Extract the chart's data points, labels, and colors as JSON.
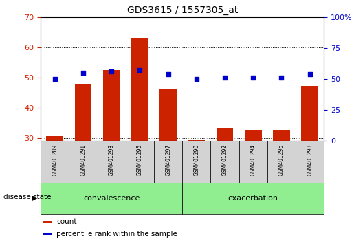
{
  "title": "GDS3615 / 1557305_at",
  "samples": [
    "GSM401289",
    "GSM401291",
    "GSM401293",
    "GSM401295",
    "GSM401297",
    "GSM401290",
    "GSM401292",
    "GSM401294",
    "GSM401296",
    "GSM401298"
  ],
  "counts": [
    30.7,
    48.0,
    52.5,
    63.0,
    46.0,
    29.3,
    33.5,
    32.5,
    32.5,
    47.0
  ],
  "percentile_ranks": [
    50,
    55,
    56,
    57,
    54,
    50,
    51,
    51,
    51,
    54
  ],
  "ylim_left": [
    29,
    70
  ],
  "ylim_right": [
    0,
    100
  ],
  "yticks_left": [
    30,
    40,
    50,
    60,
    70
  ],
  "yticks_right": [
    0,
    25,
    50,
    75,
    100
  ],
  "group_labels": [
    "convalescence",
    "exacerbation"
  ],
  "group_sizes": [
    5,
    5
  ],
  "group_color": "#90ee90",
  "bar_color": "#cc2200",
  "dot_color": "#0000cc",
  "bar_width": 0.6,
  "legend_items": [
    "count",
    "percentile rank within the sample"
  ],
  "disease_state_label": "disease state",
  "background_color": "#ffffff",
  "tick_label_color_left": "#cc2200",
  "tick_label_color_right": "#0000cc",
  "label_area_color": "#d3d3d3"
}
